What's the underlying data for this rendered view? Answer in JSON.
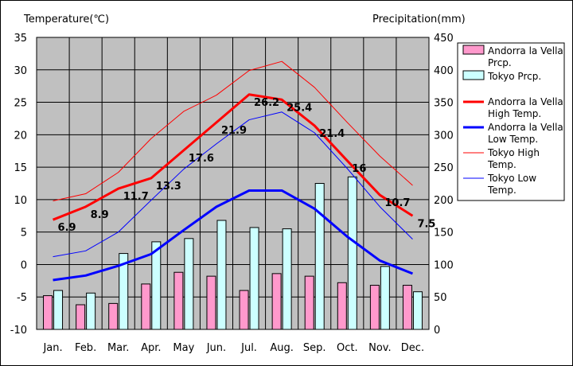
{
  "chart_data": {
    "type": "bar-line-combo",
    "left_axis_title": "Temperature(℃)",
    "right_axis_title": "Precipitation(mm)",
    "left_ylim": [
      -10,
      35
    ],
    "right_ylim": [
      0,
      450
    ],
    "left_ticks": [
      "35",
      "30",
      "25",
      "20",
      "15",
      "10",
      "5",
      "0",
      "-5",
      "-10"
    ],
    "right_ticks": [
      "450",
      "400",
      "350",
      "300",
      "250",
      "200",
      "150",
      "100",
      "50",
      "0"
    ],
    "categories": [
      "Jan.",
      "Feb.",
      "Mar.",
      "Apr.",
      "May",
      "Jun.",
      "Jul.",
      "Aug.",
      "Sep.",
      "Oct.",
      "Nov.",
      "Dec."
    ],
    "grid": true,
    "legend_position": "right",
    "bar_series": [
      {
        "name": "Andorra la Vella Prcp.",
        "color": "#ff99cc",
        "values": [
          52,
          38,
          40,
          70,
          88,
          82,
          60,
          86,
          82,
          72,
          68,
          68
        ]
      },
      {
        "name": "Tokyo Prcp.",
        "color": "#ccffff",
        "values": [
          60,
          56,
          117,
          135,
          140,
          168,
          157,
          155,
          225,
          235,
          97,
          58
        ]
      }
    ],
    "line_series": [
      {
        "name": "Andorra la Vella High Temp.",
        "color": "#ff0000",
        "width": "thick",
        "values": [
          6.9,
          8.9,
          11.7,
          13.3,
          17.6,
          21.9,
          26.2,
          25.4,
          21.4,
          16,
          10.7,
          7.5
        ]
      },
      {
        "name": "Andorra la Vella Low Temp.",
        "color": "#0000ff",
        "width": "thick",
        "values": [
          -2.4,
          -1.7,
          -0.2,
          1.6,
          5.3,
          8.9,
          11.4,
          11.4,
          8.6,
          4.3,
          0.6,
          -1.4
        ]
      },
      {
        "name": "Tokyo High Temp.",
        "color": "#ff0000",
        "width": "thin",
        "values": [
          9.8,
          10.9,
          14.2,
          19.4,
          23.6,
          26.1,
          29.9,
          31.3,
          27.3,
          21.9,
          16.7,
          12.2
        ]
      },
      {
        "name": "Tokyo Low Temp.",
        "color": "#0000ff",
        "width": "thin",
        "values": [
          1.2,
          2.1,
          5.0,
          9.9,
          14.7,
          18.6,
          22.3,
          23.5,
          20.3,
          14.8,
          8.9,
          3.9
        ]
      }
    ],
    "data_labels": [
      "6.9",
      "8.9",
      "11.7",
      "13.3",
      "17.6",
      "21.9",
      "26.2",
      "25.4",
      "21.4",
      "16",
      "10.7",
      "7.5"
    ]
  },
  "legend": [
    {
      "lines": [
        "Andorra la Vella",
        "Prcp."
      ],
      "kind": "bar",
      "color": "#ff99cc"
    },
    {
      "lines": [
        "Tokyo Prcp."
      ],
      "kind": "bar",
      "color": "#ccffff"
    },
    {
      "lines": [
        "Andorra la Vella",
        "High Temp."
      ],
      "kind": "line-thick",
      "color": "#ff0000"
    },
    {
      "lines": [
        "Andorra la Vella",
        "Low Temp."
      ],
      "kind": "line-thick",
      "color": "#0000ff"
    },
    {
      "lines": [
        "Tokyo High",
        "Temp."
      ],
      "kind": "line-thin",
      "color": "#ff0000"
    },
    {
      "lines": [
        "Tokyo Low",
        "Temp."
      ],
      "kind": "line-thin",
      "color": "#0000ff"
    }
  ]
}
